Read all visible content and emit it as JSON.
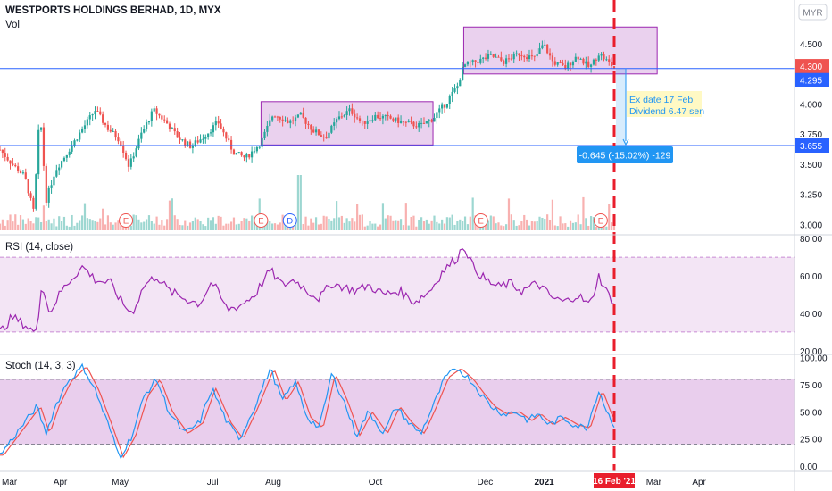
{
  "header": {
    "title": "WESTPORTS HOLDINGS BERHAD, 1D, MYX",
    "volume_label": "Vol",
    "currency_button": "MYR"
  },
  "colors": {
    "up": "#26a69a",
    "down": "#ef5350",
    "hline": "#2962ff",
    "box_fill": "#e1bee7",
    "box_stroke": "#9c27b0",
    "rsi_line": "#9c27b0",
    "rsi_band": "#f3e5f5",
    "stoch_k": "#2196f3",
    "stoch_d": "#ef5350",
    "stoch_band": "#e1bee7",
    "vline": "#e91e2c",
    "note_bg": "#fff9c4",
    "measure_bg": "#2196f3"
  },
  "price_pane": {
    "y_ticks": [
      "4.750",
      "4.500",
      "4.250",
      "4.000",
      "3.750",
      "3.500",
      "3.250",
      "3.000"
    ],
    "y_tick_values": [
      4.75,
      4.5,
      4.25,
      4.0,
      3.75,
      3.5,
      3.25,
      3.0
    ],
    "ylim": [
      2.95,
      4.82
    ],
    "last_price_label": "4.300",
    "hline_upper_label": "4.295",
    "hline_lower_label": "3.655",
    "hline_upper": 4.295,
    "hline_lower": 3.655,
    "last_price": 4.3,
    "note_line1": "Ex date 17 Feb",
    "note_line2": "Dividend 6.47 sen",
    "measure_label": "-0.645 (-15.02%) -129",
    "earnings_marker": "E",
    "dividend_marker": "D",
    "boxes": [
      {
        "x0": 0.425,
        "x1": 0.705,
        "y0": 3.66,
        "y1": 4.02
      },
      {
        "x0": 0.755,
        "x1": 1.07,
        "y0": 4.25,
        "y1": 4.64
      },
      {
        "x0": 1.05,
        "x1": 1.07,
        "y0": 4.25,
        "y1": 4.64
      }
    ],
    "markers": [
      {
        "x": 0.205,
        "label": "E"
      },
      {
        "x": 0.425,
        "label": "E"
      },
      {
        "x": 0.472,
        "label": "D"
      },
      {
        "x": 0.783,
        "label": "E"
      },
      {
        "x": 0.978,
        "label": "E"
      }
    ]
  },
  "rsi_pane": {
    "title": "RSI (14, close)",
    "y_ticks": [
      "80.00",
      "60.00",
      "40.00",
      "20.00"
    ],
    "y_tick_values": [
      80,
      60,
      40,
      20
    ],
    "ylim": [
      18,
      82
    ],
    "band": [
      30,
      70
    ]
  },
  "stoch_pane": {
    "title": "Stoch (14, 3, 3)",
    "y_ticks": [
      "100.00",
      "75.00",
      "50.00",
      "25.00",
      "0.00"
    ],
    "y_tick_values": [
      100,
      75,
      50,
      25,
      0
    ],
    "ylim": [
      -5,
      103
    ],
    "band": [
      20,
      80
    ]
  },
  "x_axis": {
    "ticks": [
      {
        "x": 0.0,
        "label": "Mar"
      },
      {
        "x": 0.1,
        "label": "Apr"
      },
      {
        "x": 0.195,
        "label": "May"
      },
      {
        "x": 0.35,
        "label": "Jul"
      },
      {
        "x": 0.445,
        "label": "Aug"
      },
      {
        "x": 0.613,
        "label": "Oct"
      },
      {
        "x": 0.79,
        "label": "Dec"
      },
      {
        "x": 0.883,
        "label": "2021"
      },
      {
        "x": 1.065,
        "label": "Mar"
      },
      {
        "x": 1.14,
        "label": "Apr"
      }
    ],
    "cursor_date_label": "16 Feb '21",
    "cursor_x": 1.0
  },
  "chart_data": {
    "type": "candlestick",
    "title": "WESTPORTS HOLDINGS BERHAD, 1D, MYX",
    "currency": "MYR",
    "anchors": [
      [
        0,
        3.62
      ],
      [
        0.02,
        3.5
      ],
      [
        0.04,
        3.4
      ],
      [
        0.055,
        3.1
      ],
      [
        0.065,
        3.95
      ],
      [
        0.075,
        3.2
      ],
      [
        0.09,
        3.45
      ],
      [
        0.11,
        3.6
      ],
      [
        0.135,
        3.8
      ],
      [
        0.155,
        3.95
      ],
      [
        0.175,
        3.8
      ],
      [
        0.195,
        3.7
      ],
      [
        0.21,
        3.48
      ],
      [
        0.23,
        3.75
      ],
      [
        0.25,
        3.95
      ],
      [
        0.27,
        3.85
      ],
      [
        0.29,
        3.72
      ],
      [
        0.31,
        3.65
      ],
      [
        0.33,
        3.72
      ],
      [
        0.355,
        3.85
      ],
      [
        0.38,
        3.6
      ],
      [
        0.4,
        3.55
      ],
      [
        0.425,
        3.68
      ],
      [
        0.445,
        3.92
      ],
      [
        0.47,
        3.85
      ],
      [
        0.49,
        3.9
      ],
      [
        0.51,
        3.78
      ],
      [
        0.53,
        3.72
      ],
      [
        0.55,
        3.88
      ],
      [
        0.57,
        3.95
      ],
      [
        0.59,
        3.84
      ],
      [
        0.61,
        3.9
      ],
      [
        0.635,
        3.88
      ],
      [
        0.66,
        3.84
      ],
      [
        0.685,
        3.82
      ],
      [
        0.705,
        3.88
      ],
      [
        0.725,
        4.0
      ],
      [
        0.745,
        4.15
      ],
      [
        0.755,
        4.32
      ],
      [
        0.775,
        4.35
      ],
      [
        0.8,
        4.4
      ],
      [
        0.82,
        4.35
      ],
      [
        0.845,
        4.42
      ],
      [
        0.87,
        4.38
      ],
      [
        0.885,
        4.5
      ],
      [
        0.9,
        4.35
      ],
      [
        0.92,
        4.3
      ],
      [
        0.94,
        4.4
      ],
      [
        0.96,
        4.3
      ],
      [
        0.975,
        4.42
      ],
      [
        0.99,
        4.35
      ],
      [
        1.0,
        4.3
      ]
    ],
    "rsi_anchors": [
      [
        0,
        30
      ],
      [
        0.02,
        38
      ],
      [
        0.04,
        34
      ],
      [
        0.06,
        29
      ],
      [
        0.068,
        58
      ],
      [
        0.08,
        40
      ],
      [
        0.1,
        52
      ],
      [
        0.12,
        60
      ],
      [
        0.135,
        65
      ],
      [
        0.155,
        58
      ],
      [
        0.18,
        56
      ],
      [
        0.2,
        45
      ],
      [
        0.215,
        40
      ],
      [
        0.235,
        55
      ],
      [
        0.255,
        60
      ],
      [
        0.275,
        52
      ],
      [
        0.3,
        48
      ],
      [
        0.325,
        45
      ],
      [
        0.345,
        57
      ],
      [
        0.37,
        42
      ],
      [
        0.39,
        44
      ],
      [
        0.415,
        50
      ],
      [
        0.44,
        63
      ],
      [
        0.46,
        55
      ],
      [
        0.48,
        58
      ],
      [
        0.5,
        52
      ],
      [
        0.52,
        48
      ],
      [
        0.54,
        56
      ],
      [
        0.56,
        54
      ],
      [
        0.58,
        52
      ],
      [
        0.6,
        55
      ],
      [
        0.625,
        50
      ],
      [
        0.65,
        52
      ],
      [
        0.675,
        46
      ],
      [
        0.7,
        52
      ],
      [
        0.72,
        62
      ],
      [
        0.745,
        70
      ],
      [
        0.755,
        77
      ],
      [
        0.77,
        65
      ],
      [
        0.79,
        58
      ],
      [
        0.81,
        54
      ],
      [
        0.83,
        56
      ],
      [
        0.85,
        52
      ],
      [
        0.875,
        56
      ],
      [
        0.9,
        48
      ],
      [
        0.92,
        46
      ],
      [
        0.94,
        50
      ],
      [
        0.96,
        44
      ],
      [
        0.975,
        60
      ],
      [
        0.99,
        50
      ],
      [
        1.0,
        46
      ]
    ],
    "stoch_anchors": [
      [
        0,
        10
      ],
      [
        0.02,
        25
      ],
      [
        0.04,
        40
      ],
      [
        0.06,
        55
      ],
      [
        0.075,
        30
      ],
      [
        0.09,
        55
      ],
      [
        0.11,
        78
      ],
      [
        0.135,
        92
      ],
      [
        0.155,
        70
      ],
      [
        0.175,
        40
      ],
      [
        0.195,
        8
      ],
      [
        0.215,
        28
      ],
      [
        0.235,
        65
      ],
      [
        0.255,
        80
      ],
      [
        0.275,
        50
      ],
      [
        0.3,
        30
      ],
      [
        0.325,
        40
      ],
      [
        0.345,
        72
      ],
      [
        0.37,
        40
      ],
      [
        0.39,
        25
      ],
      [
        0.415,
        55
      ],
      [
        0.44,
        90
      ],
      [
        0.46,
        60
      ],
      [
        0.48,
        78
      ],
      [
        0.5,
        45
      ],
      [
        0.52,
        35
      ],
      [
        0.54,
        85
      ],
      [
        0.56,
        60
      ],
      [
        0.58,
        28
      ],
      [
        0.6,
        50
      ],
      [
        0.625,
        30
      ],
      [
        0.645,
        55
      ],
      [
        0.665,
        40
      ],
      [
        0.685,
        30
      ],
      [
        0.705,
        55
      ],
      [
        0.725,
        82
      ],
      [
        0.745,
        90
      ],
      [
        0.765,
        80
      ],
      [
        0.785,
        65
      ],
      [
        0.8,
        55
      ],
      [
        0.82,
        48
      ],
      [
        0.84,
        50
      ],
      [
        0.86,
        42
      ],
      [
        0.875,
        48
      ],
      [
        0.895,
        38
      ],
      [
        0.915,
        45
      ],
      [
        0.935,
        38
      ],
      [
        0.955,
        35
      ],
      [
        0.975,
        70
      ],
      [
        0.99,
        48
      ],
      [
        1.0,
        38
      ]
    ]
  }
}
